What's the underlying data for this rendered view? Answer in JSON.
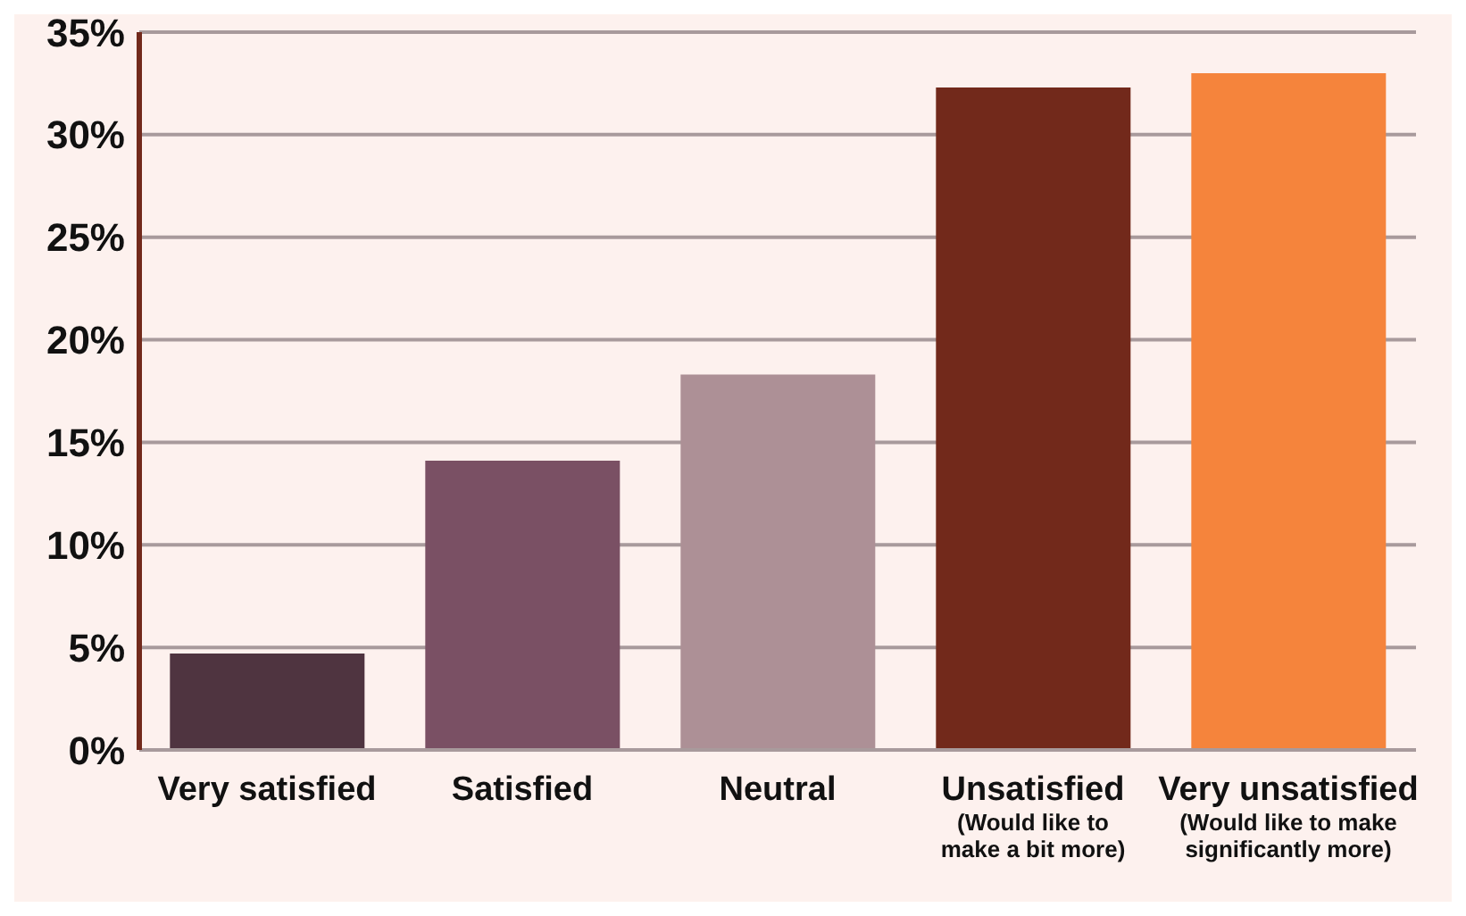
{
  "chart_data": {
    "type": "bar",
    "categories": [
      "Very satisfied",
      "Satisfied",
      "Neutral",
      "Unsatisfied\n(Would like to\nmake a bit more)",
      "Very unsatisfied\n(Would like to make\nsignificantly more)"
    ],
    "values": [
      4.7,
      14.1,
      18.3,
      32.3,
      33.0
    ],
    "colors": [
      "#4f3440",
      "#7a5064",
      "#ad9096",
      "#72291b",
      "#f5843c"
    ],
    "ylim": [
      0,
      35
    ],
    "yticks": [
      {
        "value": 0,
        "label": "0%"
      },
      {
        "value": 5,
        "label": "5%"
      },
      {
        "value": 10,
        "label": "10%"
      },
      {
        "value": 15,
        "label": "15%"
      },
      {
        "value": 20,
        "label": "20%"
      },
      {
        "value": 25,
        "label": "25%"
      },
      {
        "value": 30,
        "label": "30%"
      },
      {
        "value": 35,
        "label": "35%"
      }
    ],
    "grid": "y"
  }
}
